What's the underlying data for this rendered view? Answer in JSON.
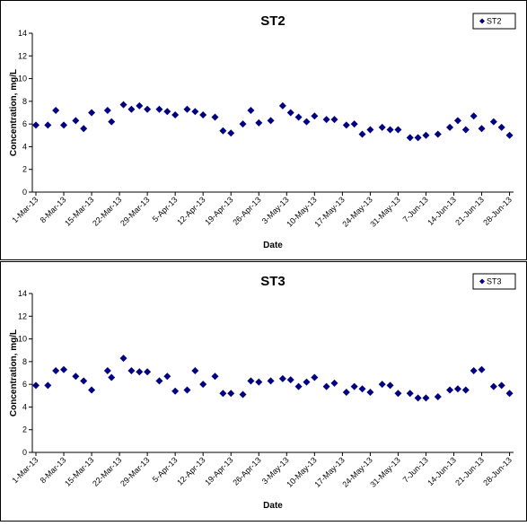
{
  "chart_data": [
    {
      "type": "scatter",
      "title": "ST2",
      "xlabel": "Date",
      "ylabel": "Concentration, mg/L",
      "x": [
        "2013-03-01",
        "2013-03-04",
        "2013-03-06",
        "2013-03-08",
        "2013-03-11",
        "2013-03-13",
        "2013-03-15",
        "2013-03-19",
        "2013-03-20",
        "2013-03-23",
        "2013-03-25",
        "2013-03-27",
        "2013-03-29",
        "2013-04-01",
        "2013-04-03",
        "2013-04-05",
        "2013-04-08",
        "2013-04-10",
        "2013-04-12",
        "2013-04-15",
        "2013-04-17",
        "2013-04-19",
        "2013-04-22",
        "2013-04-24",
        "2013-04-26",
        "2013-04-29",
        "2013-05-02",
        "2013-05-04",
        "2013-05-06",
        "2013-05-08",
        "2013-05-10",
        "2013-05-13",
        "2013-05-15",
        "2013-05-18",
        "2013-05-20",
        "2013-05-22",
        "2013-05-24",
        "2013-05-27",
        "2013-05-29",
        "2013-05-31",
        "2013-06-03",
        "2013-06-05",
        "2013-06-07",
        "2013-06-10",
        "2013-06-13",
        "2013-06-15",
        "2013-06-17",
        "2013-06-19",
        "2013-06-21",
        "2013-06-24",
        "2013-06-26",
        "2013-06-28"
      ],
      "series": [
        {
          "name": "ST2",
          "color": "#000080",
          "values": [
            5.9,
            5.9,
            7.2,
            5.9,
            6.3,
            5.6,
            7.0,
            7.2,
            6.2,
            7.7,
            7.3,
            7.6,
            7.3,
            7.3,
            7.1,
            6.8,
            7.3,
            7.1,
            6.8,
            6.6,
            5.4,
            5.2,
            6.0,
            7.2,
            6.1,
            6.3,
            7.6,
            7.0,
            6.6,
            6.2,
            6.7,
            6.4,
            6.4,
            5.9,
            6.0,
            5.1,
            5.5,
            5.7,
            5.5,
            5.5,
            4.8,
            4.8,
            5.0,
            5.1,
            5.7,
            6.3,
            5.5,
            6.7,
            5.6,
            6.2,
            5.7,
            5.0
          ]
        }
      ],
      "xlim": [
        "2013-03-01",
        "2013-06-29"
      ],
      "xticks": [
        {
          "value": "2013-03-01",
          "label": "1-Mar-13"
        },
        {
          "value": "2013-03-08",
          "label": "8-Mar-13"
        },
        {
          "value": "2013-03-15",
          "label": "15-Mar-13"
        },
        {
          "value": "2013-03-22",
          "label": "22-Mar-13"
        },
        {
          "value": "2013-03-29",
          "label": "29-Mar-13"
        },
        {
          "value": "2013-04-05",
          "label": "5-Apr-13"
        },
        {
          "value": "2013-04-12",
          "label": "12-Apr-13"
        },
        {
          "value": "2013-04-19",
          "label": "19-Apr-13"
        },
        {
          "value": "2013-04-26",
          "label": "26-Apr-13"
        },
        {
          "value": "2013-05-03",
          "label": "3-May-13"
        },
        {
          "value": "2013-05-10",
          "label": "10-May-13"
        },
        {
          "value": "2013-05-17",
          "label": "17-May-13"
        },
        {
          "value": "2013-05-24",
          "label": "24-May-13"
        },
        {
          "value": "2013-05-31",
          "label": "31-May-13"
        },
        {
          "value": "2013-06-07",
          "label": "7-Jun-13"
        },
        {
          "value": "2013-06-14",
          "label": "14-Jun-13"
        },
        {
          "value": "2013-06-21",
          "label": "21-Jun-13"
        },
        {
          "value": "2013-06-28",
          "label": "28-Jun-13"
        }
      ],
      "ylim": [
        0,
        14
      ],
      "yticks": [
        0,
        2,
        4,
        6,
        8,
        10,
        12,
        14
      ],
      "legend": "upper right"
    },
    {
      "type": "scatter",
      "title": "ST3",
      "xlabel": "Date",
      "ylabel": "Concentration, mg/L",
      "x": [
        "2013-03-01",
        "2013-03-04",
        "2013-03-06",
        "2013-03-08",
        "2013-03-11",
        "2013-03-13",
        "2013-03-15",
        "2013-03-19",
        "2013-03-20",
        "2013-03-23",
        "2013-03-25",
        "2013-03-27",
        "2013-03-29",
        "2013-04-01",
        "2013-04-03",
        "2013-04-05",
        "2013-04-08",
        "2013-04-10",
        "2013-04-12",
        "2013-04-15",
        "2013-04-17",
        "2013-04-19",
        "2013-04-22",
        "2013-04-24",
        "2013-04-26",
        "2013-04-29",
        "2013-05-02",
        "2013-05-04",
        "2013-05-06",
        "2013-05-08",
        "2013-05-10",
        "2013-05-13",
        "2013-05-15",
        "2013-05-18",
        "2013-05-20",
        "2013-05-22",
        "2013-05-24",
        "2013-05-27",
        "2013-05-29",
        "2013-05-31",
        "2013-06-03",
        "2013-06-05",
        "2013-06-07",
        "2013-06-10",
        "2013-06-13",
        "2013-06-15",
        "2013-06-17",
        "2013-06-19",
        "2013-06-21",
        "2013-06-24",
        "2013-06-26",
        "2013-06-28"
      ],
      "series": [
        {
          "name": "ST3",
          "color": "#000080",
          "values": [
            5.9,
            5.9,
            7.2,
            7.3,
            6.7,
            6.3,
            5.5,
            7.2,
            6.6,
            8.3,
            7.2,
            7.1,
            7.1,
            6.3,
            6.7,
            5.4,
            5.5,
            7.2,
            6.0,
            6.7,
            5.2,
            5.2,
            5.1,
            6.3,
            6.2,
            6.3,
            6.5,
            6.4,
            5.8,
            6.2,
            6.6,
            5.8,
            6.1,
            5.3,
            5.8,
            5.6,
            5.3,
            6.0,
            5.9,
            5.2,
            5.2,
            4.8,
            4.8,
            4.9,
            5.5,
            5.6,
            5.5,
            7.2,
            7.3,
            5.8,
            5.9,
            5.2
          ]
        }
      ],
      "xlim": [
        "2013-03-01",
        "2013-06-29"
      ],
      "xticks": [
        {
          "value": "2013-03-01",
          "label": "1-Mar-13"
        },
        {
          "value": "2013-03-08",
          "label": "8-Mar-13"
        },
        {
          "value": "2013-03-15",
          "label": "15-Mar-13"
        },
        {
          "value": "2013-03-22",
          "label": "22-Mar-13"
        },
        {
          "value": "2013-03-29",
          "label": "29-Mar-13"
        },
        {
          "value": "2013-04-05",
          "label": "5-Apr-13"
        },
        {
          "value": "2013-04-12",
          "label": "12-Apr-13"
        },
        {
          "value": "2013-04-19",
          "label": "19-Apr-13"
        },
        {
          "value": "2013-04-26",
          "label": "26-Apr-13"
        },
        {
          "value": "2013-05-03",
          "label": "3-May-13"
        },
        {
          "value": "2013-05-10",
          "label": "10-May-13"
        },
        {
          "value": "2013-05-17",
          "label": "17-May-13"
        },
        {
          "value": "2013-05-24",
          "label": "24-May-13"
        },
        {
          "value": "2013-05-31",
          "label": "31-May-13"
        },
        {
          "value": "2013-06-07",
          "label": "7-Jun-13"
        },
        {
          "value": "2013-06-14",
          "label": "14-Jun-13"
        },
        {
          "value": "2013-06-21",
          "label": "21-Jun-13"
        },
        {
          "value": "2013-06-28",
          "label": "28-Jun-13"
        }
      ],
      "ylim": [
        0,
        14
      ],
      "yticks": [
        0,
        2,
        4,
        6,
        8,
        10,
        12,
        14
      ],
      "legend": "upper right"
    }
  ]
}
